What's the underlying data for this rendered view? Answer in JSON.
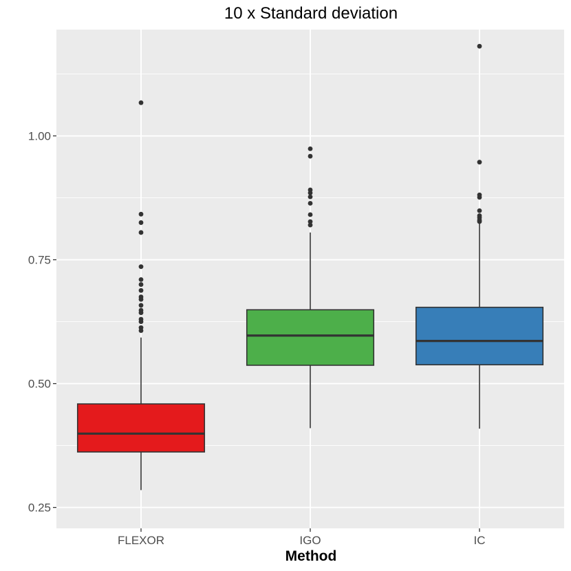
{
  "chart_data": {
    "type": "box",
    "title": "10 x Standard deviation",
    "xlabel": "Method",
    "ylabel": "",
    "ylim": [
      0.25,
      1.19
    ],
    "yticks": [
      0.25,
      0.5,
      0.75,
      1.0
    ],
    "ytick_labels": [
      "0.25",
      "0.50",
      "0.75",
      "1.00"
    ],
    "grid": true,
    "legend": "none",
    "panel_color": "#ebebeb",
    "grid_color": "#ffffff",
    "box_line_color": "#333333",
    "categories": [
      "FLEXOR",
      "IGO",
      "IC"
    ],
    "series": [
      {
        "category": "FLEXOR",
        "color": "#e41a1c",
        "whisker_low": 0.285,
        "q1": 0.362,
        "median": 0.399,
        "q3": 0.459,
        "whisker_high": 0.593,
        "outliers": [
          1.067,
          0.842,
          0.825,
          0.805,
          0.736,
          0.71,
          0.7,
          0.688,
          0.675,
          0.67,
          0.658,
          0.648,
          0.643,
          0.63,
          0.625,
          0.613,
          0.607
        ]
      },
      {
        "category": "IGO",
        "color": "#4daf4a",
        "whisker_low": 0.41,
        "q1": 0.537,
        "median": 0.597,
        "q3": 0.649,
        "whisker_high": 0.805,
        "outliers": [
          0.974,
          0.959,
          0.891,
          0.885,
          0.877,
          0.864,
          0.841,
          0.827,
          0.82
        ]
      },
      {
        "category": "IC",
        "color": "#377eb8",
        "whisker_low": 0.409,
        "q1": 0.538,
        "median": 0.586,
        "q3": 0.654,
        "whisker_high": 0.826,
        "outliers": [
          1.181,
          0.947,
          0.881,
          0.876,
          0.849,
          0.839,
          0.835,
          0.83,
          0.827
        ]
      }
    ]
  }
}
